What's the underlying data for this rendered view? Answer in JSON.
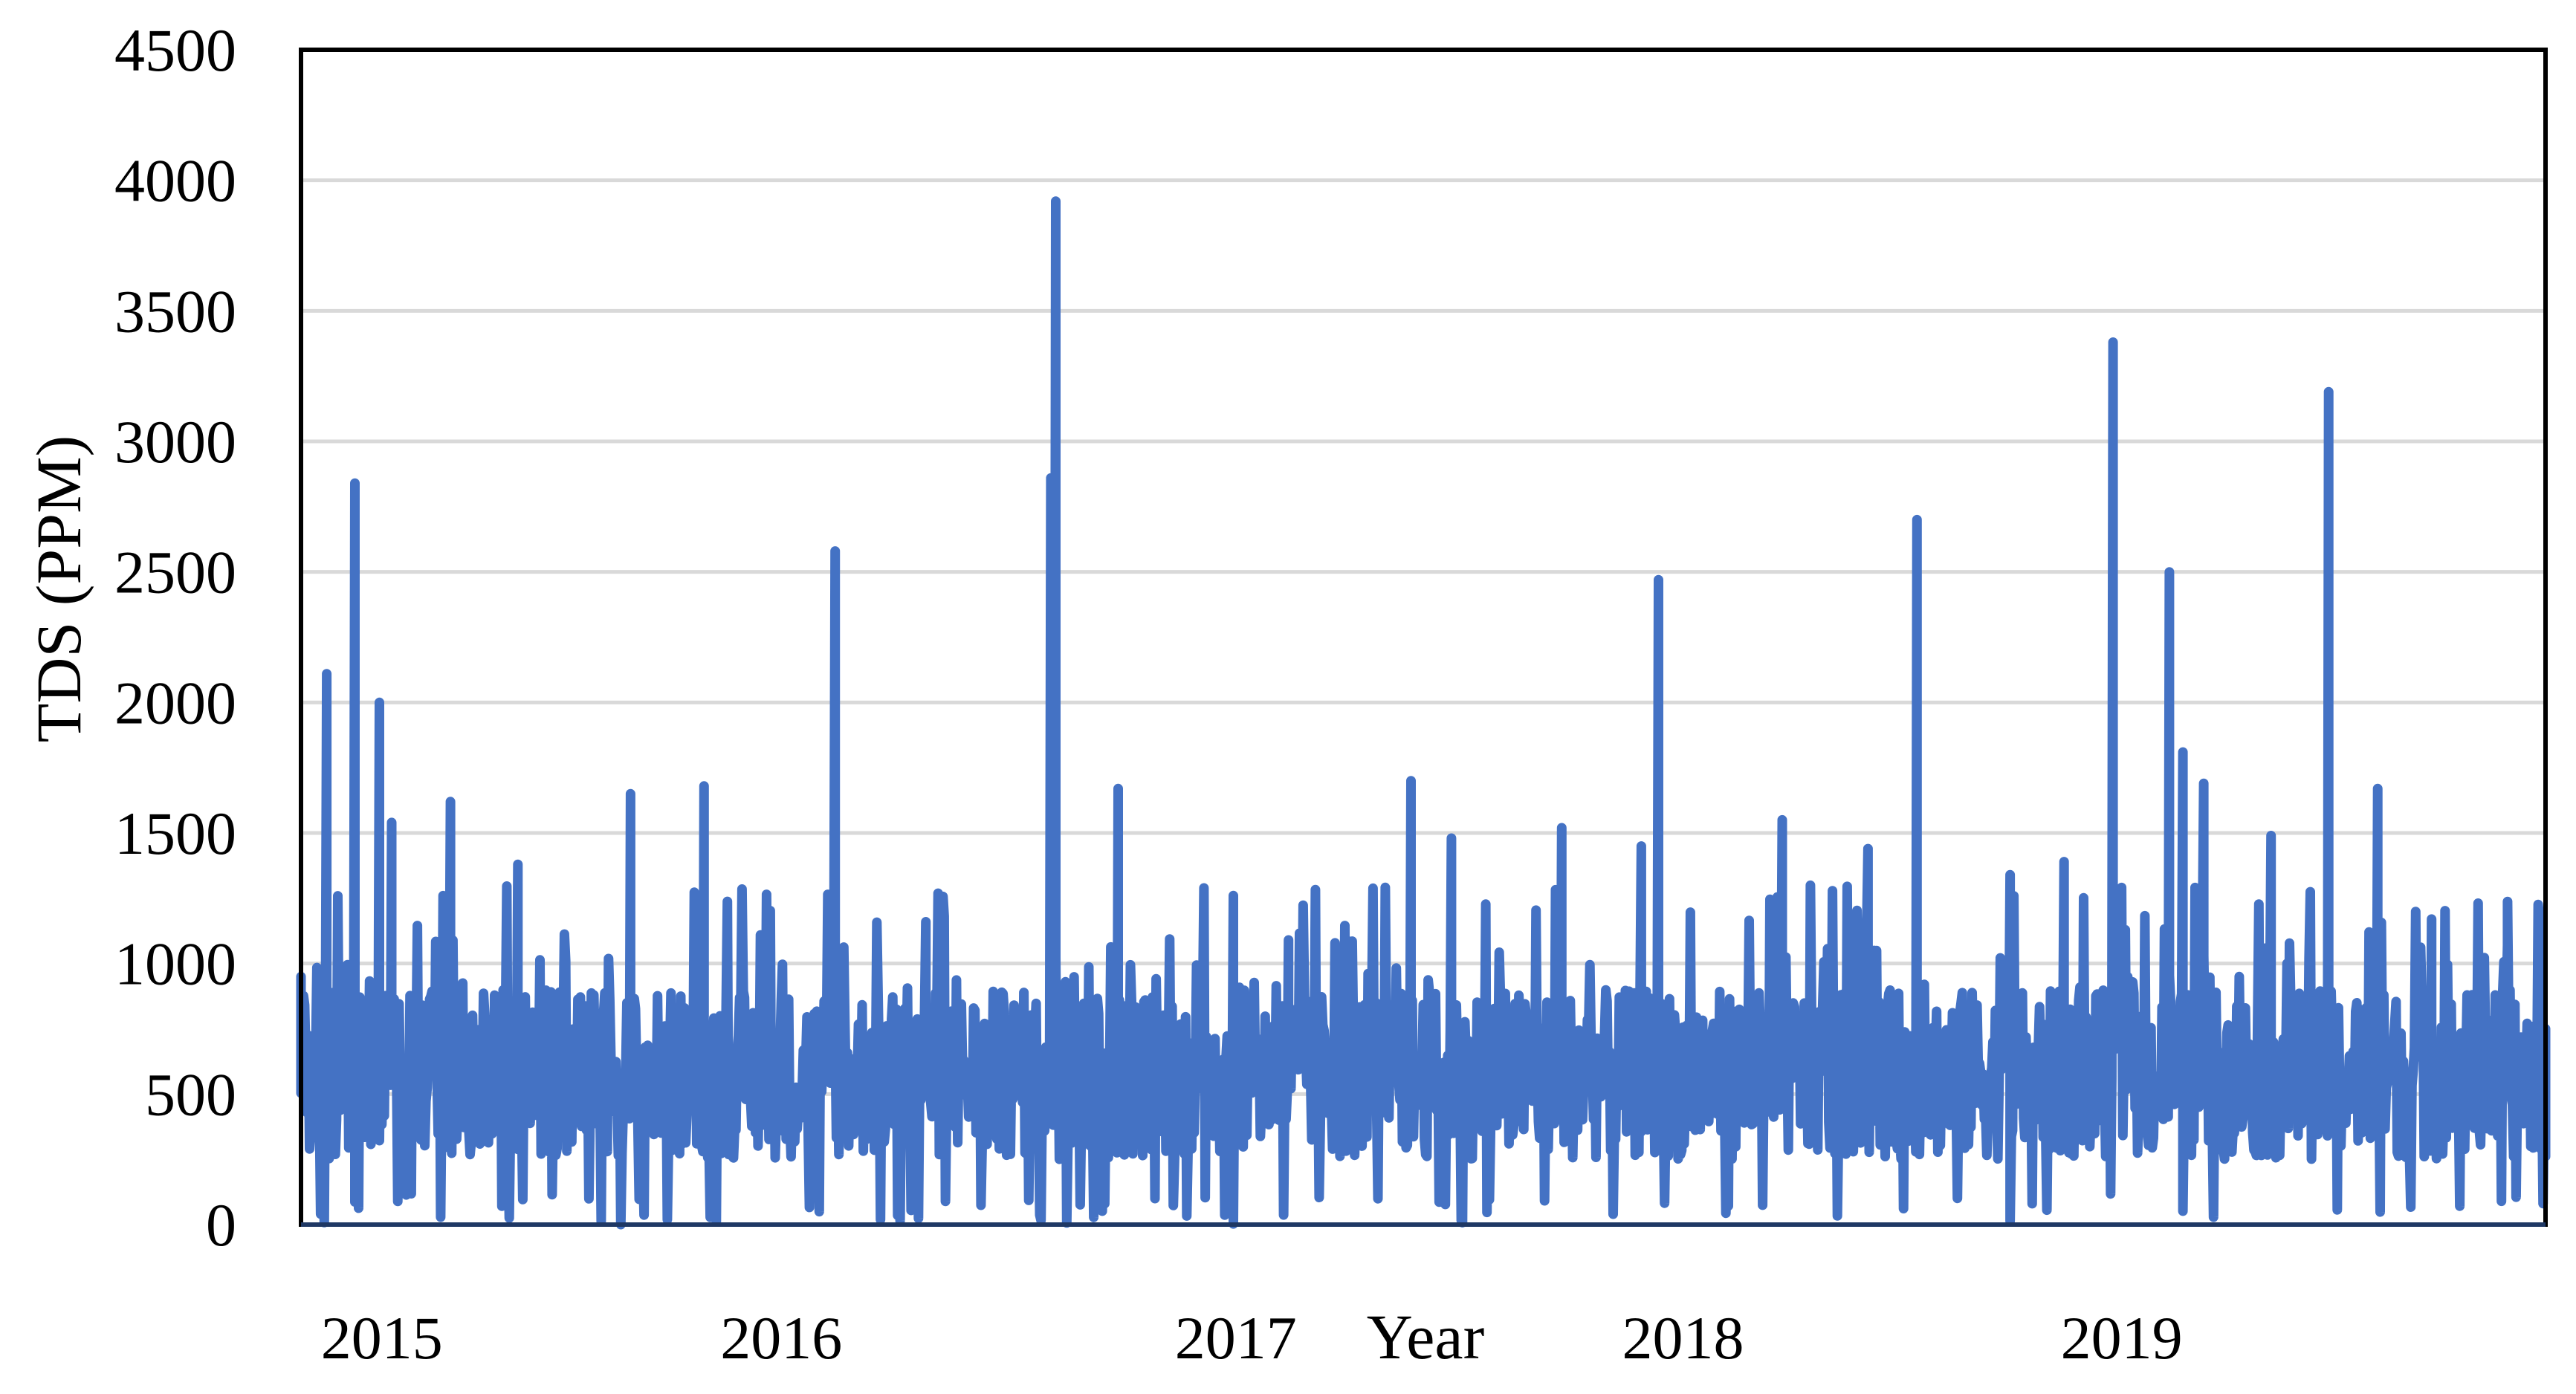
{
  "chart_data": {
    "type": "line",
    "title": "",
    "xlabel": "Year",
    "ylabel": "TDS (PPM)",
    "ylim": [
      0,
      4500
    ],
    "yticks": [
      0,
      500,
      1000,
      1500,
      2000,
      2500,
      3000,
      3500,
      4000,
      4500
    ],
    "xlim": [
      "2014-12-25",
      "2019-12-31"
    ],
    "xtick_labels": [
      "2015",
      "2016",
      "2017",
      "2018",
      "2019"
    ],
    "grid": "horizontal",
    "legend": "none",
    "colors": {
      "series": "#4472C4",
      "grid": "#D9D9D9",
      "frame": "#000000",
      "baseline": "#1F3864"
    },
    "series": [
      {
        "values_description": "daily TDS readings",
        "x": [
          "2014-12-25",
          "2015-01-15",
          "2015-02-07",
          "2015-02-27",
          "2015-03-09",
          "2015-04-26",
          "2015-06-20",
          "2015-09-20",
          "2015-11-19",
          "2016-03-05",
          "2016-05-18",
          "2016-08-28",
          "2016-09-01",
          "2016-10-22",
          "2017-01-24",
          "2017-03-10",
          "2017-06-18",
          "2017-07-21",
          "2017-10-19",
          "2017-12-23",
          "2018-01-06",
          "2018-04-17",
          "2018-06-26",
          "2018-08-05",
          "2018-10-20",
          "2018-12-03",
          "2019-01-12",
          "2019-02-27",
          "2019-03-10",
          "2019-03-27",
          "2019-05-21",
          "2019-07-07",
          "2019-08-16",
          "2019-09-29",
          "2019-11-30",
          "2019-12-31"
        ],
        "y": [
          950,
          2110,
          2840,
          2000,
          1540,
          1620,
          1380,
          1650,
          1680,
          2580,
          1160,
          2860,
          3920,
          1670,
          1260,
          1090,
          1700,
          1480,
          1520,
          1450,
          2470,
          1550,
          1440,
          2700,
          1340,
          1390,
          3380,
          2500,
          1810,
          1690,
          1490,
          3190,
          1670,
          1170,
          1070,
          750
        ]
      }
    ]
  }
}
